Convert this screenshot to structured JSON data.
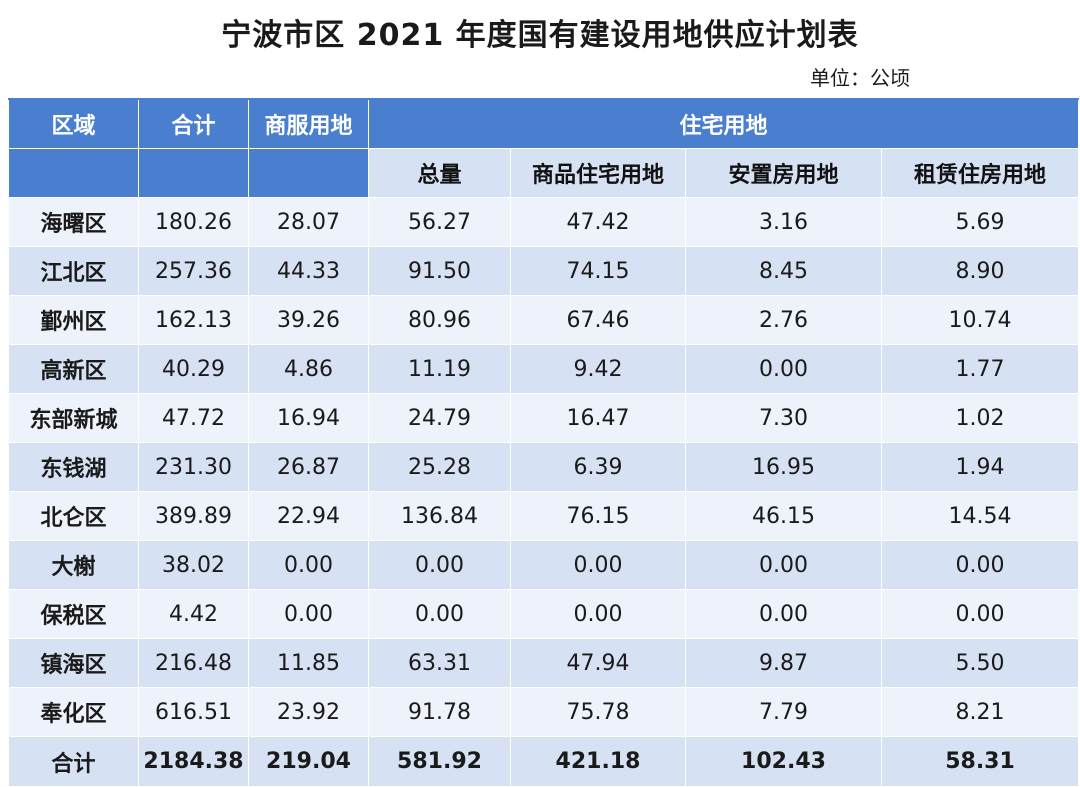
{
  "title": "宁波市区 2021 年度国有建设用地供应计划表",
  "unit": "单位：公顷",
  "headers": {
    "region": "区域",
    "total": "合计",
    "commercial": "商服用地",
    "residential": "住宅用地",
    "res_total": "总量",
    "res_commodity": "商品住宅用地",
    "res_resettlement": "安置房用地",
    "res_rental": "租赁住房用地"
  },
  "rows": [
    [
      "海曙区",
      "180.26",
      "28.07",
      "56.27",
      "47.42",
      "3.16",
      "5.69"
    ],
    [
      "江北区",
      "257.36",
      "44.33",
      "91.50",
      "74.15",
      "8.45",
      "8.90"
    ],
    [
      "鄞州区",
      "162.13",
      "39.26",
      "80.96",
      "67.46",
      "2.76",
      "10.74"
    ],
    [
      "高新区",
      "40.29",
      "4.86",
      "11.19",
      "9.42",
      "0.00",
      "1.77"
    ],
    [
      "东部新城",
      "47.72",
      "16.94",
      "24.79",
      "16.47",
      "7.30",
      "1.02"
    ],
    [
      "东钱湖",
      "231.30",
      "26.87",
      "25.28",
      "6.39",
      "16.95",
      "1.94"
    ],
    [
      "北仑区",
      "389.89",
      "22.94",
      "136.84",
      "76.15",
      "46.15",
      "14.54"
    ],
    [
      "大榭",
      "38.02",
      "0.00",
      "0.00",
      "0.00",
      "0.00",
      "0.00"
    ],
    [
      "保税区",
      "4.42",
      "0.00",
      "0.00",
      "0.00",
      "0.00",
      "0.00"
    ],
    [
      "镇海区",
      "216.48",
      "11.85",
      "63.31",
      "47.94",
      "9.87",
      "5.50"
    ],
    [
      "奉化区",
      "616.51",
      "23.92",
      "91.78",
      "75.78",
      "7.79",
      "8.21"
    ]
  ],
  "totals": [
    "合计",
    "2184.38",
    "219.04",
    "581.92",
    "421.18",
    "102.43",
    "58.31"
  ]
}
